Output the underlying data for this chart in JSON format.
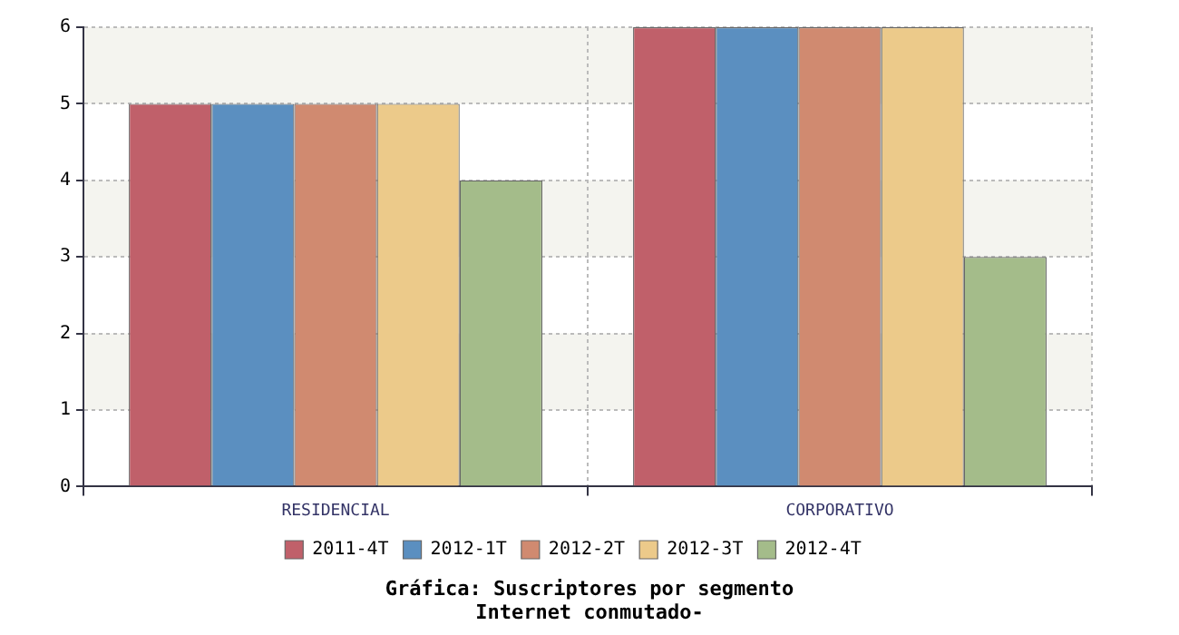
{
  "chart_data": {
    "type": "bar",
    "title": "Gráfica: Suscriptores por segmento",
    "subtitle": "Internet conmutado-",
    "categories": [
      "RESIDENCIAL",
      "CORPORATIVO"
    ],
    "series": [
      {
        "name": "2011-4T",
        "color": "#c0606a",
        "values": [
          5,
          6
        ]
      },
      {
        "name": "2012-1T",
        "color": "#5b8fc0",
        "values": [
          5,
          6
        ]
      },
      {
        "name": "2012-2T",
        "color": "#d08a70",
        "values": [
          5,
          6
        ]
      },
      {
        "name": "2012-3T",
        "color": "#ecca8a",
        "values": [
          5,
          6
        ]
      },
      {
        "name": "2012-4T",
        "color": "#a4bc8a",
        "values": [
          4,
          3
        ]
      }
    ],
    "ylim": [
      0,
      6
    ],
    "yticks": [
      0,
      1,
      2,
      3,
      4,
      5,
      6
    ],
    "grid": true,
    "legend": "bottom"
  }
}
